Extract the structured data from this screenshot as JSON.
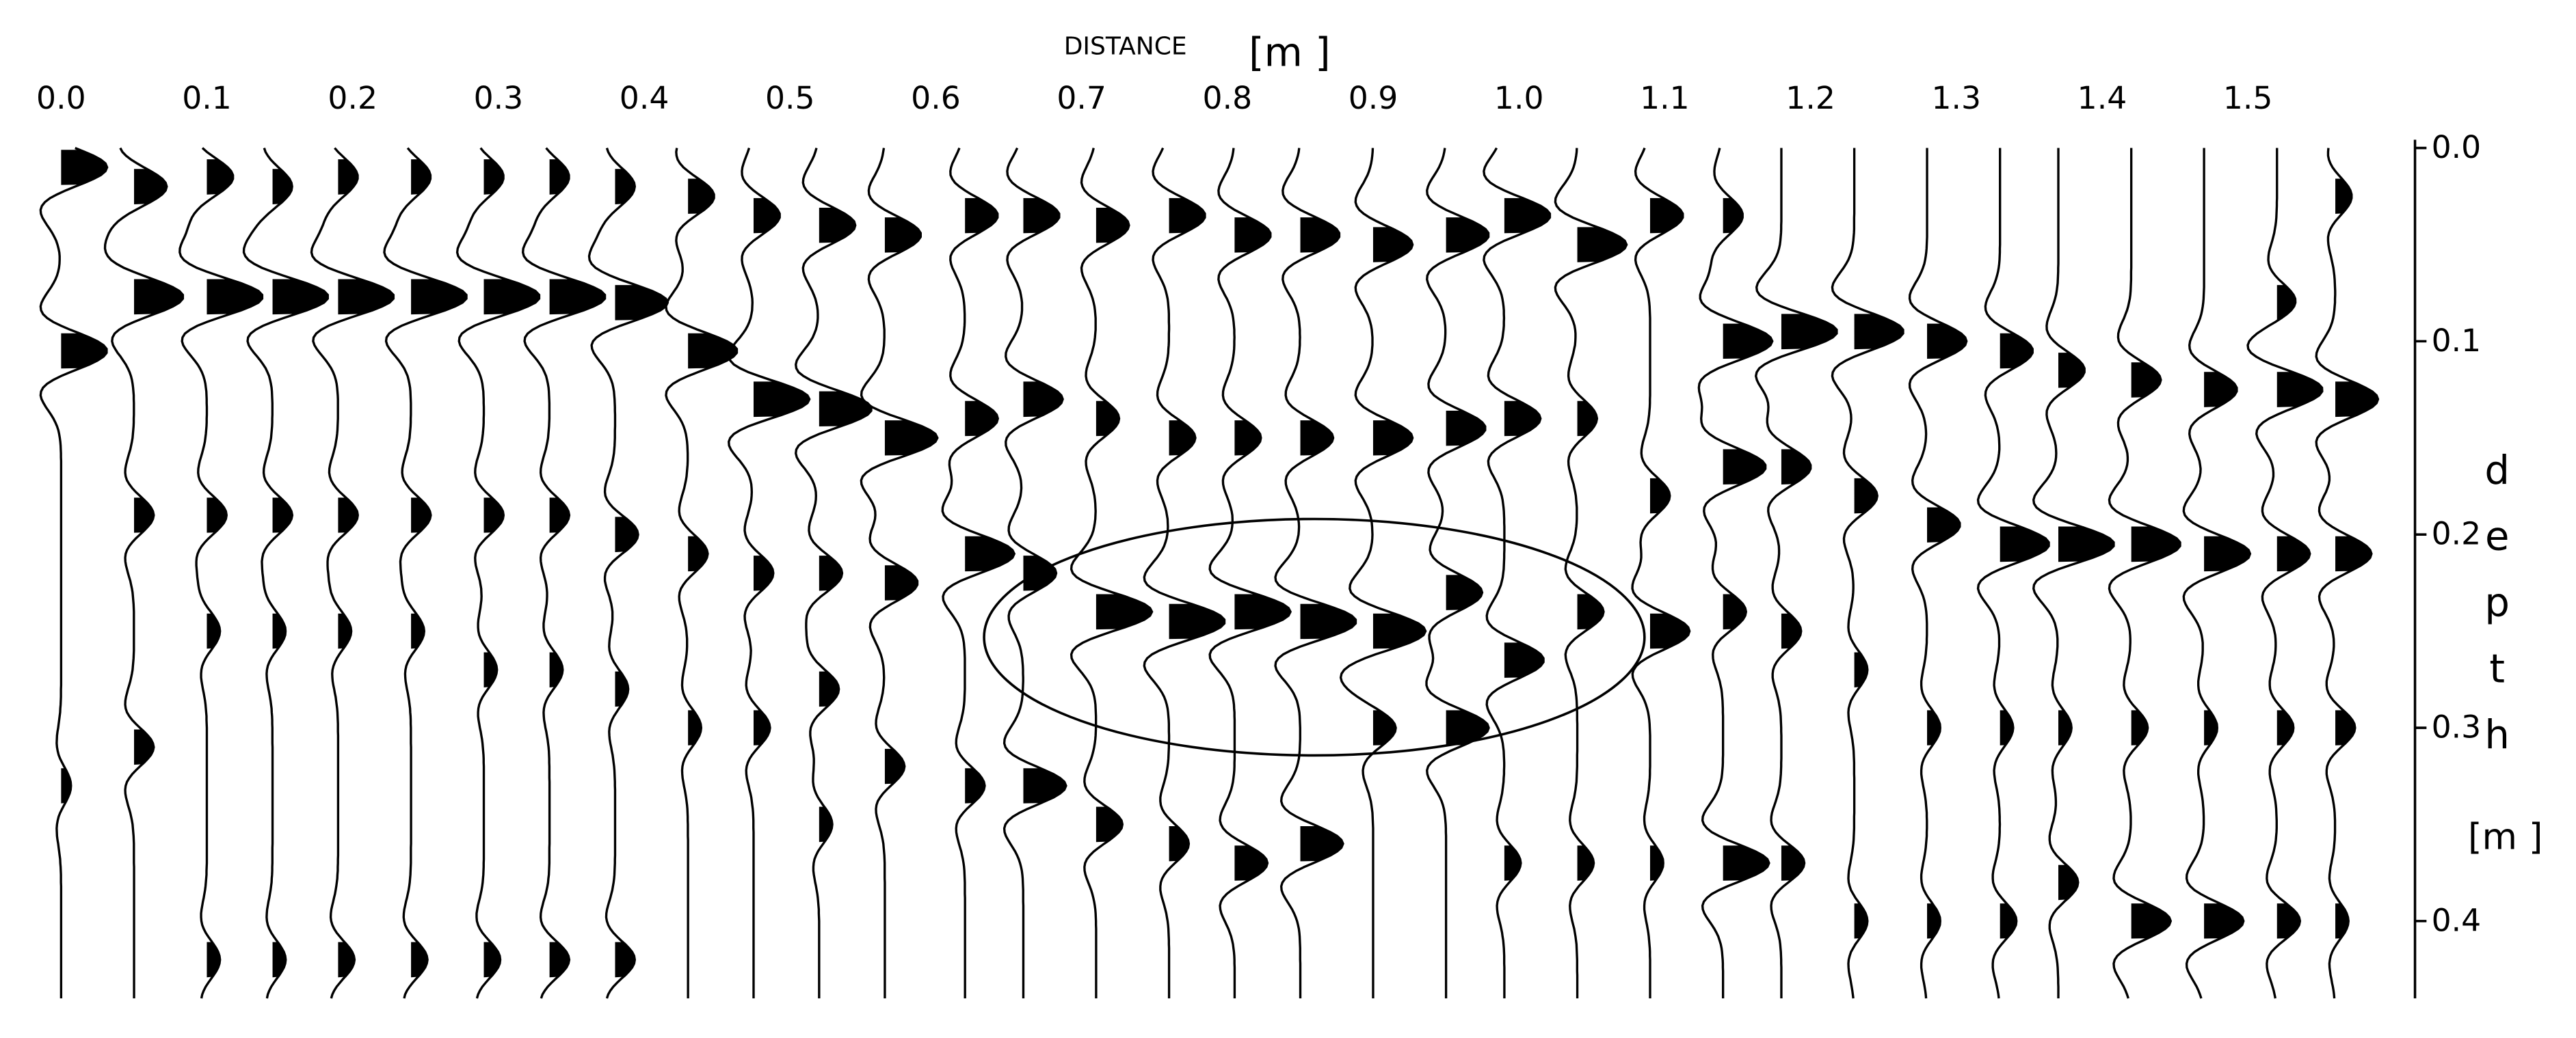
{
  "chart_data": {
    "type": "wiggle",
    "xlabel": "DISTANCE",
    "xlabel_unit": "[m ]",
    "ylabel": "depth",
    "ylabel_unit": "[m ]",
    "xlim": [
      -0.025,
      1.6
    ],
    "ylim": [
      0,
      0.44
    ],
    "y_reversed": true,
    "color": "#000000",
    "xticks": [
      {
        "value": 0,
        "label": "0.0"
      },
      0.1,
      0.2,
      0.3,
      0.4,
      0.5,
      0.6,
      0.7,
      0.8,
      0.9,
      {
        "value": 1,
        "label": "1.0"
      },
      1.1,
      1.2,
      1.3,
      1.4,
      1.5
    ],
    "yticks": [
      {
        "value": 0,
        "label": "0.0"
      },
      0.1,
      0.2,
      0.3,
      0.4
    ],
    "traces": [
      {
        "x": 0.0,
        "depths": [
          0.01,
          0.105,
          0.33
        ],
        "amplitudes": [
          0.7,
          0.7,
          0.15
        ]
      },
      {
        "x": 0.05,
        "depths": [
          0.02,
          0.077,
          0.19,
          0.31
        ],
        "amplitudes": [
          0.5,
          0.75,
          0.3,
          0.3
        ]
      },
      {
        "x": 0.1,
        "depths": [
          0.015,
          0.077,
          0.19,
          0.25,
          0.42
        ],
        "amplitudes": [
          0.4,
          0.85,
          0.3,
          0.2,
          0.2
        ]
      },
      {
        "x": 0.145,
        "depths": [
          0.02,
          0.077,
          0.19,
          0.25,
          0.42
        ],
        "amplitudes": [
          0.3,
          0.85,
          0.3,
          0.2,
          0.2
        ]
      },
      {
        "x": 0.19,
        "depths": [
          0.015,
          0.077,
          0.19,
          0.25,
          0.42
        ],
        "amplitudes": [
          0.3,
          0.85,
          0.3,
          0.2,
          0.25
        ]
      },
      {
        "x": 0.24,
        "depths": [
          0.015,
          0.077,
          0.19,
          0.25,
          0.42
        ],
        "amplitudes": [
          0.3,
          0.85,
          0.3,
          0.2,
          0.25
        ]
      },
      {
        "x": 0.29,
        "depths": [
          0.015,
          0.077,
          0.19,
          0.27,
          0.42
        ],
        "amplitudes": [
          0.3,
          0.85,
          0.3,
          0.2,
          0.25
        ]
      },
      {
        "x": 0.335,
        "depths": [
          0.015,
          0.077,
          0.19,
          0.27,
          0.42
        ],
        "amplitudes": [
          0.3,
          0.85,
          0.3,
          0.2,
          0.3
        ]
      },
      {
        "x": 0.38,
        "depths": [
          0.02,
          0.08,
          0.2,
          0.28,
          0.42
        ],
        "amplitudes": [
          0.3,
          0.8,
          0.35,
          0.2,
          0.3
        ]
      },
      {
        "x": 0.43,
        "depths": [
          0.025,
          0.105,
          0.21,
          0.3
        ],
        "amplitudes": [
          0.4,
          0.75,
          0.3,
          0.2
        ]
      },
      {
        "x": 0.475,
        "depths": [
          0.035,
          0.13,
          0.22,
          0.3
        ],
        "amplitudes": [
          0.4,
          0.85,
          0.3,
          0.25
        ]
      },
      {
        "x": 0.52,
        "depths": [
          0.04,
          0.135,
          0.22,
          0.28,
          0.35
        ],
        "amplitudes": [
          0.55,
          0.8,
          0.35,
          0.3,
          0.2
        ]
      },
      {
        "x": 0.565,
        "depths": [
          0.045,
          0.15,
          0.225,
          0.32
        ],
        "amplitudes": [
          0.55,
          0.8,
          0.5,
          0.3
        ]
      },
      {
        "x": 0.62,
        "depths": [
          0.035,
          0.14,
          0.21,
          0.33
        ],
        "amplitudes": [
          0.5,
          0.5,
          0.75,
          0.3
        ]
      },
      {
        "x": 0.66,
        "depths": [
          0.035,
          0.13,
          0.22,
          0.33
        ],
        "amplitudes": [
          0.55,
          0.6,
          0.5,
          0.65
        ]
      },
      {
        "x": 0.71,
        "depths": [
          0.04,
          0.14,
          0.24,
          0.35
        ],
        "amplitudes": [
          0.5,
          0.35,
          0.85,
          0.4
        ]
      },
      {
        "x": 0.76,
        "depths": [
          0.035,
          0.15,
          0.245,
          0.36
        ],
        "amplitudes": [
          0.55,
          0.4,
          0.85,
          0.3
        ]
      },
      {
        "x": 0.805,
        "depths": [
          0.045,
          0.15,
          0.24,
          0.37
        ],
        "amplitudes": [
          0.55,
          0.4,
          0.85,
          0.5
        ]
      },
      {
        "x": 0.85,
        "depths": [
          0.045,
          0.15,
          0.245,
          0.36
        ],
        "amplitudes": [
          0.6,
          0.5,
          0.85,
          0.65
        ]
      },
      {
        "x": 0.9,
        "depths": [
          0.05,
          0.15,
          0.25,
          0.3
        ],
        "amplitudes": [
          0.6,
          0.6,
          0.8,
          0.35
        ]
      },
      {
        "x": 0.95,
        "depths": [
          0.045,
          0.145,
          0.23,
          0.3
        ],
        "amplitudes": [
          0.65,
          0.6,
          0.55,
          0.65
        ]
      },
      {
        "x": 0.99,
        "depths": [
          0.035,
          0.14,
          0.265,
          0.37
        ],
        "amplitudes": [
          0.7,
          0.55,
          0.6,
          0.25
        ]
      },
      {
        "x": 1.04,
        "depths": [
          0.05,
          0.14,
          0.24,
          0.37
        ],
        "amplitudes": [
          0.75,
          0.3,
          0.4,
          0.25
        ]
      },
      {
        "x": 1.09,
        "depths": [
          0.035,
          0.18,
          0.25,
          0.37
        ],
        "amplitudes": [
          0.5,
          0.3,
          0.6,
          0.2
        ]
      },
      {
        "x": 1.14,
        "depths": [
          0.035,
          0.1,
          0.165,
          0.24,
          0.37
        ],
        "amplitudes": [
          0.3,
          0.75,
          0.65,
          0.35,
          0.7
        ]
      },
      {
        "x": 1.18,
        "depths": [
          0.095,
          0.165,
          0.25,
          0.37
        ],
        "amplitudes": [
          0.85,
          0.45,
          0.3,
          0.35
        ]
      },
      {
        "x": 1.23,
        "depths": [
          0.095,
          0.18,
          0.27,
          0.4
        ],
        "amplitudes": [
          0.75,
          0.35,
          0.2,
          0.2
        ]
      },
      {
        "x": 1.28,
        "depths": [
          0.1,
          0.195,
          0.3,
          0.4
        ],
        "amplitudes": [
          0.6,
          0.5,
          0.2,
          0.2
        ]
      },
      {
        "x": 1.33,
        "depths": [
          0.105,
          0.205,
          0.3,
          0.4
        ],
        "amplitudes": [
          0.5,
          0.75,
          0.2,
          0.25
        ]
      },
      {
        "x": 1.37,
        "depths": [
          0.115,
          0.205,
          0.3,
          0.38
        ],
        "amplitudes": [
          0.4,
          0.85,
          0.2,
          0.3
        ]
      },
      {
        "x": 1.42,
        "depths": [
          0.12,
          0.205,
          0.3,
          0.4
        ],
        "amplitudes": [
          0.45,
          0.75,
          0.25,
          0.6
        ]
      },
      {
        "x": 1.47,
        "depths": [
          0.125,
          0.21,
          0.3,
          0.4
        ],
        "amplitudes": [
          0.5,
          0.7,
          0.2,
          0.6
        ]
      },
      {
        "x": 1.52,
        "depths": [
          0.08,
          0.125,
          0.21,
          0.3,
          0.4
        ],
        "amplitudes": [
          0.3,
          0.7,
          0.5,
          0.25,
          0.35
        ]
      },
      {
        "x": 1.56,
        "depths": [
          0.025,
          0.13,
          0.21,
          0.3,
          0.4
        ],
        "amplitudes": [
          0.25,
          0.65,
          0.55,
          0.3,
          0.2
        ]
      }
    ]
  }
}
